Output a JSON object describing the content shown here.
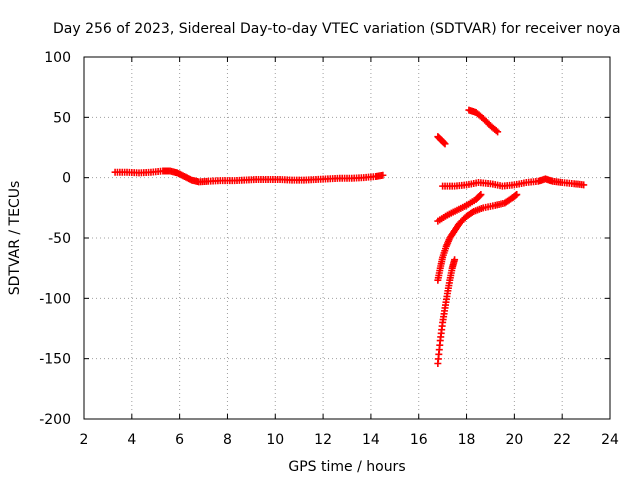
{
  "chart_data": {
    "type": "scatter",
    "title": "Day 256 of 2023, Sidereal Day-to-day VTEC variation (SDTVAR) for receiver noya",
    "xlabel": "GPS time / hours",
    "ylabel": "SDTVAR / TECUs",
    "xlim": [
      2,
      24
    ],
    "ylim": [
      -200,
      100
    ],
    "xticks": [
      2,
      4,
      6,
      8,
      10,
      12,
      14,
      16,
      18,
      20,
      22,
      24
    ],
    "yticks": [
      -200,
      -150,
      -100,
      -50,
      0,
      50,
      100
    ],
    "xtick_labels": [
      "2",
      "4",
      "6",
      "8",
      "10",
      "12",
      "14",
      "16",
      "18",
      "20",
      "22",
      "24"
    ],
    "ytick_labels": [
      "-200",
      "-150",
      "-100",
      "-50",
      "0",
      "50",
      "100"
    ],
    "grid": true,
    "marker": "plus",
    "color": "#ff0000",
    "series": [
      {
        "name": "main-arc",
        "points": [
          [
            3.3,
            4.5
          ],
          [
            3.8,
            4.5
          ],
          [
            4.3,
            4.0
          ],
          [
            4.8,
            4.5
          ],
          [
            5.3,
            5.5
          ],
          [
            5.6,
            5.5
          ],
          [
            5.9,
            4.0
          ],
          [
            6.2,
            1.0
          ],
          [
            6.5,
            -2.0
          ],
          [
            6.8,
            -3.5
          ],
          [
            7.2,
            -3.0
          ],
          [
            7.7,
            -2.5
          ],
          [
            8.2,
            -2.5
          ],
          [
            8.7,
            -2.0
          ],
          [
            9.2,
            -1.5
          ],
          [
            9.7,
            -1.5
          ],
          [
            10.2,
            -1.5
          ],
          [
            10.7,
            -2.0
          ],
          [
            11.2,
            -2.0
          ],
          [
            11.7,
            -1.5
          ],
          [
            12.2,
            -1.0
          ],
          [
            12.7,
            -0.5
          ],
          [
            13.2,
            -0.5
          ],
          [
            13.7,
            0.0
          ],
          [
            14.2,
            1.0
          ],
          [
            14.5,
            2.0
          ]
        ]
      },
      {
        "name": "arc-a",
        "points": [
          [
            16.8,
            34
          ],
          [
            16.95,
            31
          ],
          [
            17.1,
            28
          ]
        ]
      },
      {
        "name": "arc-b",
        "points": [
          [
            18.1,
            56
          ],
          [
            18.4,
            54
          ],
          [
            18.7,
            49
          ],
          [
            19.0,
            43
          ],
          [
            19.3,
            38
          ]
        ]
      },
      {
        "name": "arc-c",
        "points": [
          [
            17.0,
            -7
          ],
          [
            17.5,
            -7
          ],
          [
            18.0,
            -6
          ],
          [
            18.5,
            -4
          ],
          [
            19.0,
            -5
          ],
          [
            19.5,
            -7
          ],
          [
            20.0,
            -6
          ],
          [
            20.5,
            -4
          ],
          [
            21.0,
            -3
          ],
          [
            21.3,
            -1
          ],
          [
            21.6,
            -3
          ],
          [
            22.0,
            -4
          ],
          [
            22.5,
            -5
          ],
          [
            22.9,
            -6
          ]
        ]
      },
      {
        "name": "arc-d",
        "points": [
          [
            16.8,
            -36
          ],
          [
            17.2,
            -31
          ],
          [
            17.6,
            -27
          ],
          [
            18.0,
            -23
          ],
          [
            18.4,
            -18
          ],
          [
            18.6,
            -14
          ]
        ]
      },
      {
        "name": "arc-e",
        "points": [
          [
            16.8,
            -85
          ],
          [
            16.9,
            -75
          ],
          [
            17.0,
            -66
          ],
          [
            17.15,
            -57
          ],
          [
            17.3,
            -50
          ],
          [
            17.5,
            -44
          ],
          [
            17.7,
            -38
          ],
          [
            18.0,
            -32
          ],
          [
            18.3,
            -28
          ],
          [
            18.7,
            -25
          ],
          [
            19.2,
            -23
          ],
          [
            19.6,
            -21
          ],
          [
            19.9,
            -17
          ],
          [
            20.1,
            -14
          ]
        ]
      },
      {
        "name": "arc-f",
        "points": [
          [
            16.8,
            -154
          ],
          [
            16.9,
            -135
          ],
          [
            17.0,
            -120
          ],
          [
            17.1,
            -108
          ],
          [
            17.2,
            -96
          ],
          [
            17.3,
            -85
          ],
          [
            17.4,
            -75
          ],
          [
            17.5,
            -68
          ]
        ]
      }
    ]
  }
}
